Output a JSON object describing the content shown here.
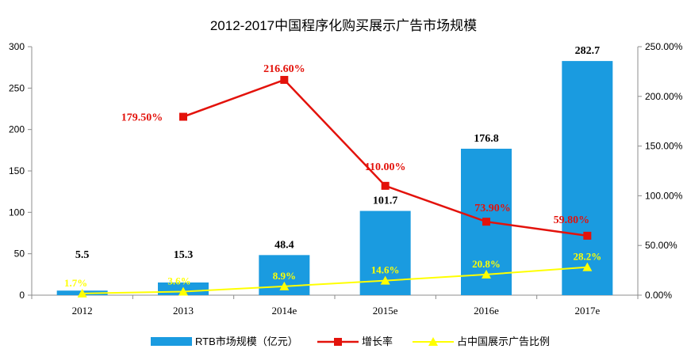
{
  "chart_data": {
    "type": "bar",
    "title": "2012-2017中国程序化购买展示广告市场规模",
    "categories": [
      "2012",
      "2013",
      "2014e",
      "2015e",
      "2016e",
      "2017e"
    ],
    "y_left": {
      "ylim": [
        0,
        300
      ],
      "ticks": [
        "0",
        "50",
        "100",
        "150",
        "200",
        "250",
        "300"
      ]
    },
    "y_right": {
      "ylim": [
        0,
        250
      ],
      "ticks": [
        "0.00%",
        "50.00%",
        "100.00%",
        "150.00%",
        "200.00%",
        "250.00%"
      ]
    },
    "grid": false,
    "legend_position": "bottom",
    "series": [
      {
        "name": "RTB市场规模（亿元）",
        "kind": "bar",
        "axis": "left",
        "color": "#1a9be0",
        "values": [
          5.5,
          15.3,
          48.4,
          101.7,
          176.8,
          282.7
        ],
        "labels": [
          "5.5",
          "15.3",
          "48.4",
          "101.7",
          "176.8",
          "282.7"
        ]
      },
      {
        "name": "增长率",
        "kind": "line",
        "axis": "right",
        "marker": "square",
        "color": "#e3120b",
        "values": [
          null,
          179.5,
          216.6,
          110.0,
          73.9,
          59.8
        ],
        "labels": [
          "",
          "179.50%",
          "216.60%",
          "110.00%",
          "73.90%",
          "59.80%"
        ]
      },
      {
        "name": "占中国展示广告比例",
        "kind": "line",
        "axis": "right",
        "marker": "triangle",
        "color": "#ffff00",
        "values": [
          1.7,
          3.6,
          8.9,
          14.6,
          20.8,
          28.2
        ],
        "labels": [
          "1.7%",
          "3.6%",
          "8.9%",
          "14.6%",
          "20.8%",
          "28.2%"
        ]
      }
    ]
  }
}
